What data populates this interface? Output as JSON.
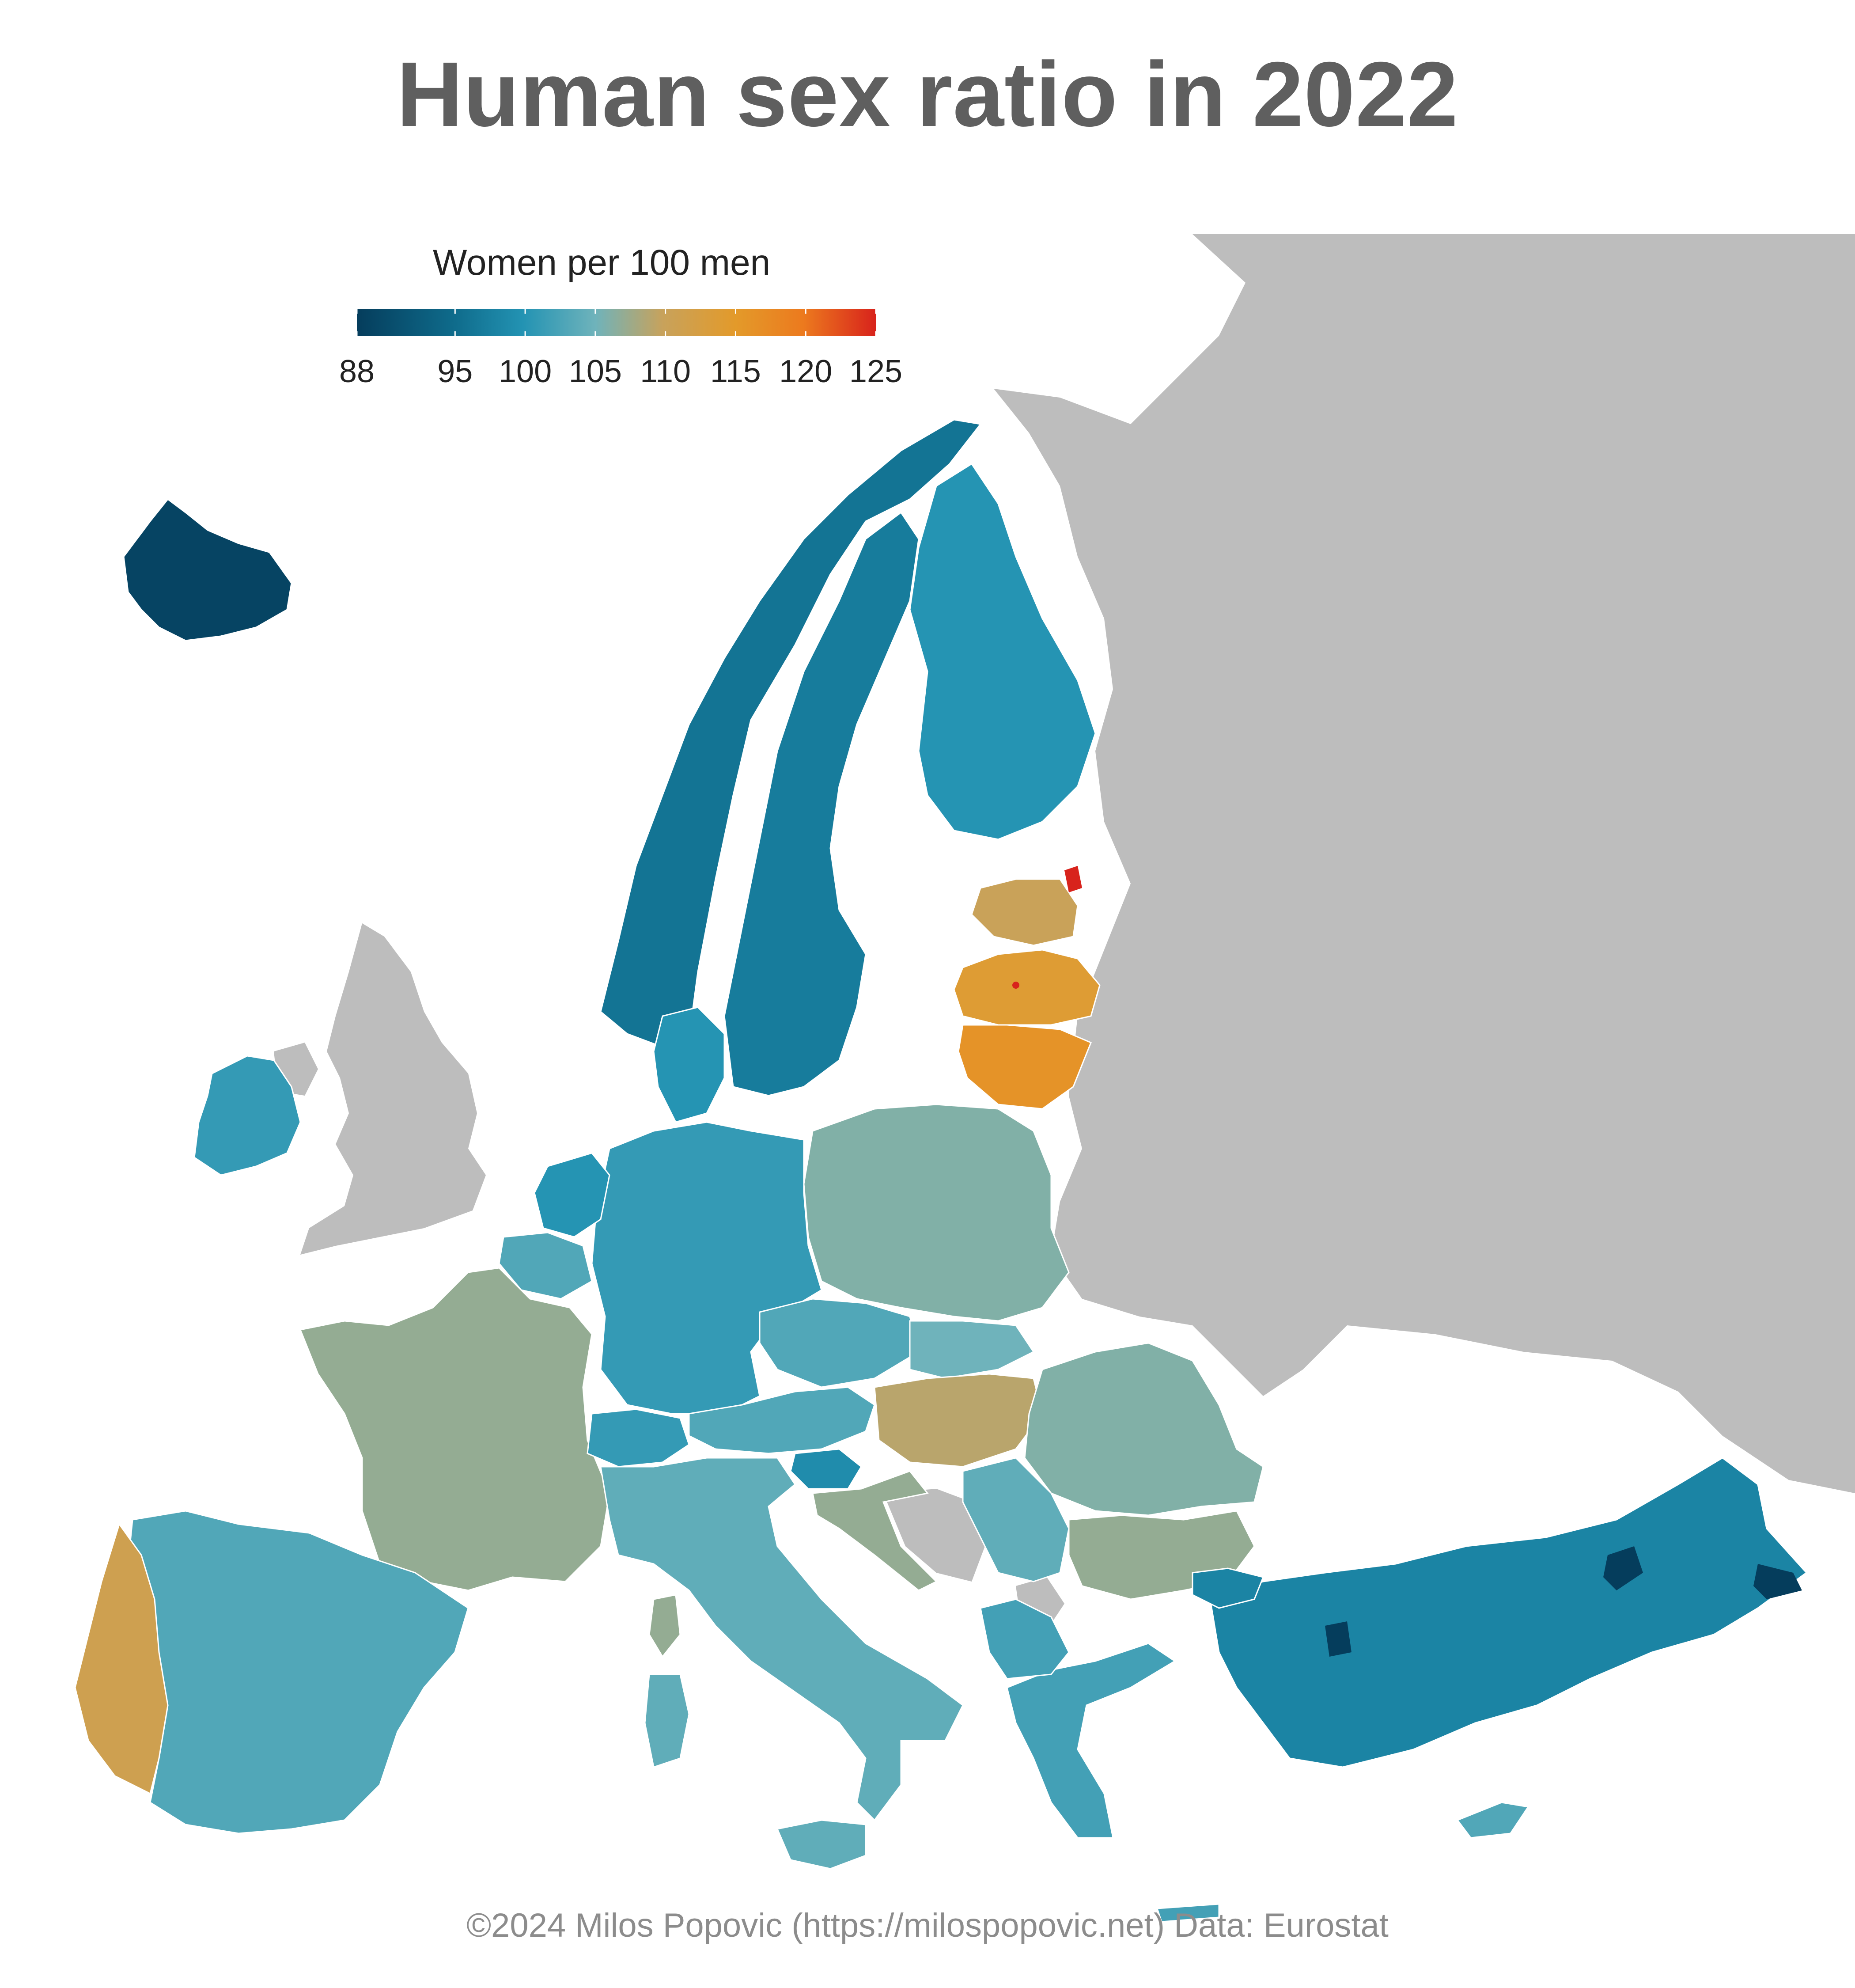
{
  "title": "Human sex ratio in 2022",
  "legend": {
    "title": "Women per 100 men",
    "min": 88,
    "max": 125,
    "ticks": [
      "88",
      "95",
      "100",
      "105",
      "110",
      "115",
      "120",
      "125"
    ],
    "tick_values": [
      88,
      95,
      100,
      105,
      110,
      115,
      120,
      125
    ],
    "colors": [
      "#053d5c",
      "#0f6c8c",
      "#2393b3",
      "#6fb3bb",
      "#c8a25b",
      "#e39a2a",
      "#ec7a1e",
      "#d8231c"
    ]
  },
  "map": {
    "no_data_color": "#bdbdbd",
    "border_color": "#ffffff",
    "regions": [
      {
        "name": "Iceland",
        "value": 89
      },
      {
        "name": "Norway",
        "value": 96
      },
      {
        "name": "Sweden",
        "value": 97
      },
      {
        "name": "Finland",
        "value": 100
      },
      {
        "name": "Estonia",
        "value": 110
      },
      {
        "name": "Latvia",
        "value": 114
      },
      {
        "name": "Lithuania",
        "value": 116
      },
      {
        "name": "Ireland",
        "value": 101
      },
      {
        "name": "Poland",
        "value": 106
      },
      {
        "name": "Germany",
        "value": 101
      },
      {
        "name": "Netherlands",
        "value": 100
      },
      {
        "name": "Belgium",
        "value": 103
      },
      {
        "name": "Denmark",
        "value": 100
      },
      {
        "name": "France",
        "value": 107
      },
      {
        "name": "Spain",
        "value": 103
      },
      {
        "name": "Portugal",
        "value": 111
      },
      {
        "name": "Switzerland",
        "value": 101
      },
      {
        "name": "Austria",
        "value": 103
      },
      {
        "name": "Czechia",
        "value": 103
      },
      {
        "name": "Slovakia",
        "value": 105
      },
      {
        "name": "Hungary",
        "value": 109
      },
      {
        "name": "Slovenia",
        "value": 99
      },
      {
        "name": "Croatia",
        "value": 107
      },
      {
        "name": "Italy",
        "value": 104
      },
      {
        "name": "Romania",
        "value": 106
      },
      {
        "name": "Bulgaria",
        "value": 107
      },
      {
        "name": "Serbia",
        "value": 104
      },
      {
        "name": "Greece",
        "value": 102
      },
      {
        "name": "Türkiye",
        "value": 98
      },
      {
        "name": "Cyprus",
        "value": 103
      }
    ]
  },
  "credit": "©2024 Milos Popovic (https://milospopovic.net) Data: Eurostat"
}
